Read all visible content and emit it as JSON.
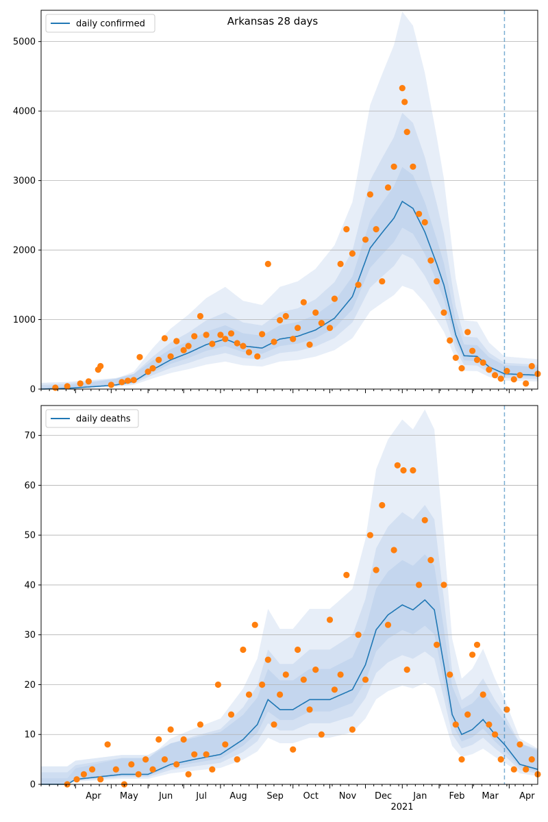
{
  "chart_data": [
    {
      "type": "line",
      "title": "Arkansas 28 days",
      "legend": [
        "daily confirmed"
      ],
      "legend_position": "top-left",
      "ylim": [
        0,
        5450
      ],
      "yticks": [
        0,
        1000,
        2000,
        3000,
        4000,
        5000
      ],
      "grid": "horizontal",
      "forecast_start": "2021-03-28",
      "xlim": [
        "2020-03-03",
        "2021-04-25"
      ],
      "median_knots": [
        [
          "2020-03-03",
          0
        ],
        [
          "2020-03-25",
          10
        ],
        [
          "2020-04-20",
          40
        ],
        [
          "2020-05-05",
          60
        ],
        [
          "2020-05-20",
          110
        ],
        [
          "2020-06-05",
          280
        ],
        [
          "2020-06-20",
          420
        ],
        [
          "2020-07-05",
          520
        ],
        [
          "2020-07-20",
          640
        ],
        [
          "2020-08-05",
          720
        ],
        [
          "2020-08-20",
          620
        ],
        [
          "2020-09-05",
          590
        ],
        [
          "2020-09-20",
          720
        ],
        [
          "2020-10-05",
          760
        ],
        [
          "2020-10-20",
          850
        ],
        [
          "2020-11-05",
          1020
        ],
        [
          "2020-11-20",
          1330
        ],
        [
          "2020-12-05",
          2030
        ],
        [
          "2020-12-15",
          2250
        ],
        [
          "2020-12-25",
          2460
        ],
        [
          "2021-01-01",
          2700
        ],
        [
          "2021-01-10",
          2600
        ],
        [
          "2021-01-20",
          2260
        ],
        [
          "2021-01-30",
          1800
        ],
        [
          "2021-02-05",
          1500
        ],
        [
          "2021-02-15",
          780
        ],
        [
          "2021-02-22",
          480
        ],
        [
          "2021-03-05",
          470
        ],
        [
          "2021-03-15",
          320
        ],
        [
          "2021-03-28",
          220
        ],
        [
          "2021-04-25",
          200
        ]
      ],
      "observed": [
        [
          "2020-03-15",
          20
        ],
        [
          "2020-03-25",
          40
        ],
        [
          "2020-04-05",
          80
        ],
        [
          "2020-04-12",
          110
        ],
        [
          "2020-04-20",
          280
        ],
        [
          "2020-04-22",
          330
        ],
        [
          "2020-05-01",
          60
        ],
        [
          "2020-05-10",
          100
        ],
        [
          "2020-05-15",
          120
        ],
        [
          "2020-05-20",
          130
        ],
        [
          "2020-05-25",
          460
        ],
        [
          "2020-06-01",
          250
        ],
        [
          "2020-06-05",
          300
        ],
        [
          "2020-06-10",
          420
        ],
        [
          "2020-06-15",
          730
        ],
        [
          "2020-06-20",
          470
        ],
        [
          "2020-06-25",
          690
        ],
        [
          "2020-07-01",
          560
        ],
        [
          "2020-07-05",
          620
        ],
        [
          "2020-07-10",
          760
        ],
        [
          "2020-07-15",
          1050
        ],
        [
          "2020-07-20",
          780
        ],
        [
          "2020-07-25",
          650
        ],
        [
          "2020-08-01",
          780
        ],
        [
          "2020-08-05",
          720
        ],
        [
          "2020-08-10",
          800
        ],
        [
          "2020-08-15",
          660
        ],
        [
          "2020-08-20",
          620
        ],
        [
          "2020-08-25",
          530
        ],
        [
          "2020-09-01",
          470
        ],
        [
          "2020-09-05",
          790
        ],
        [
          "2020-09-10",
          1800
        ],
        [
          "2020-09-15",
          680
        ],
        [
          "2020-09-20",
          990
        ],
        [
          "2020-09-25",
          1050
        ],
        [
          "2020-10-01",
          720
        ],
        [
          "2020-10-05",
          880
        ],
        [
          "2020-10-10",
          1250
        ],
        [
          "2020-10-15",
          640
        ],
        [
          "2020-10-20",
          1100
        ],
        [
          "2020-10-25",
          950
        ],
        [
          "2020-11-01",
          880
        ],
        [
          "2020-11-05",
          1300
        ],
        [
          "2020-11-10",
          1800
        ],
        [
          "2020-11-15",
          2300
        ],
        [
          "2020-11-20",
          1950
        ],
        [
          "2020-11-25",
          1500
        ],
        [
          "2020-12-01",
          2150
        ],
        [
          "2020-12-05",
          2800
        ],
        [
          "2020-12-10",
          2300
        ],
        [
          "2020-12-15",
          1550
        ],
        [
          "2020-12-20",
          2900
        ],
        [
          "2020-12-25",
          3200
        ],
        [
          "2021-01-01",
          4330
        ],
        [
          "2021-01-03",
          4130
        ],
        [
          "2021-01-05",
          3700
        ],
        [
          "2021-01-10",
          3200
        ],
        [
          "2021-01-15",
          2520
        ],
        [
          "2021-01-20",
          2400
        ],
        [
          "2021-01-25",
          1850
        ],
        [
          "2021-01-30",
          1550
        ],
        [
          "2021-02-05",
          1100
        ],
        [
          "2021-02-10",
          700
        ],
        [
          "2021-02-15",
          450
        ],
        [
          "2021-02-20",
          300
        ],
        [
          "2021-02-25",
          820
        ],
        [
          "2021-03-01",
          550
        ],
        [
          "2021-03-05",
          420
        ],
        [
          "2021-03-10",
          380
        ],
        [
          "2021-03-15",
          280
        ],
        [
          "2021-03-20",
          200
        ],
        [
          "2021-03-25",
          150
        ],
        [
          "2021-03-30",
          260
        ],
        [
          "2021-04-05",
          140
        ],
        [
          "2021-04-10",
          200
        ],
        [
          "2021-04-15",
          80
        ],
        [
          "2021-04-20",
          330
        ],
        [
          "2021-04-25",
          220
        ]
      ]
    },
    {
      "type": "line",
      "legend": [
        "daily deaths"
      ],
      "legend_position": "top-left",
      "ylim": [
        0,
        76
      ],
      "yticks": [
        0,
        10,
        20,
        30,
        40,
        50,
        60,
        70
      ],
      "grid": "horizontal",
      "forecast_start": "2021-03-28",
      "xlim": [
        "2020-03-03",
        "2021-04-25"
      ],
      "xticks": [
        [
          "2020-04-01",
          "Apr"
        ],
        [
          "2020-05-01",
          "May"
        ],
        [
          "2020-06-01",
          "Jun"
        ],
        [
          "2020-07-01",
          "Jul"
        ],
        [
          "2020-08-01",
          "Aug"
        ],
        [
          "2020-09-01",
          "Sep"
        ],
        [
          "2020-10-01",
          "Oct"
        ],
        [
          "2020-11-01",
          "Nov"
        ],
        [
          "2020-12-01",
          "Dec"
        ],
        [
          "2021-01-01",
          "Jan"
        ],
        [
          "2021-02-01",
          "Feb"
        ],
        [
          "2021-03-01",
          "Mar"
        ],
        [
          "2021-04-01",
          "Apr"
        ]
      ],
      "year_label": "2021",
      "median_knots": [
        [
          "2020-03-03",
          0
        ],
        [
          "2020-03-25",
          0
        ],
        [
          "2020-04-01",
          1
        ],
        [
          "2020-05-10",
          2
        ],
        [
          "2020-06-01",
          2
        ],
        [
          "2020-06-20",
          4
        ],
        [
          "2020-07-10",
          5
        ],
        [
          "2020-08-01",
          6
        ],
        [
          "2020-08-20",
          9
        ],
        [
          "2020-09-01",
          12
        ],
        [
          "2020-09-10",
          17
        ],
        [
          "2020-09-20",
          15
        ],
        [
          "2020-10-01",
          15
        ],
        [
          "2020-10-15",
          17
        ],
        [
          "2020-11-01",
          17
        ],
        [
          "2020-11-20",
          19
        ],
        [
          "2020-12-01",
          24
        ],
        [
          "2020-12-10",
          31
        ],
        [
          "2020-12-20",
          34
        ],
        [
          "2021-01-01",
          36
        ],
        [
          "2021-01-10",
          35
        ],
        [
          "2021-01-20",
          37
        ],
        [
          "2021-01-28",
          35
        ],
        [
          "2021-02-05",
          24
        ],
        [
          "2021-02-12",
          14
        ],
        [
          "2021-02-20",
          10
        ],
        [
          "2021-03-01",
          11
        ],
        [
          "2021-03-10",
          13
        ],
        [
          "2021-03-20",
          10
        ],
        [
          "2021-03-28",
          8
        ],
        [
          "2021-04-10",
          4
        ],
        [
          "2021-04-25",
          3
        ]
      ],
      "observed": [
        [
          "2020-03-25",
          0
        ],
        [
          "2020-04-02",
          1
        ],
        [
          "2020-04-08",
          2
        ],
        [
          "2020-04-15",
          3
        ],
        [
          "2020-04-22",
          1
        ],
        [
          "2020-04-28",
          8
        ],
        [
          "2020-05-05",
          3
        ],
        [
          "2020-05-12",
          0
        ],
        [
          "2020-05-18",
          4
        ],
        [
          "2020-05-24",
          2
        ],
        [
          "2020-05-30",
          5
        ],
        [
          "2020-06-05",
          3
        ],
        [
          "2020-06-10",
          9
        ],
        [
          "2020-06-15",
          5
        ],
        [
          "2020-06-20",
          11
        ],
        [
          "2020-06-25",
          4
        ],
        [
          "2020-07-01",
          9
        ],
        [
          "2020-07-05",
          2
        ],
        [
          "2020-07-10",
          6
        ],
        [
          "2020-07-15",
          12
        ],
        [
          "2020-07-20",
          6
        ],
        [
          "2020-07-25",
          3
        ],
        [
          "2020-07-30",
          20
        ],
        [
          "2020-08-05",
          8
        ],
        [
          "2020-08-10",
          14
        ],
        [
          "2020-08-15",
          5
        ],
        [
          "2020-08-20",
          27
        ],
        [
          "2020-08-25",
          18
        ],
        [
          "2020-08-30",
          32
        ],
        [
          "2020-09-05",
          20
        ],
        [
          "2020-09-10",
          25
        ],
        [
          "2020-09-15",
          12
        ],
        [
          "2020-09-20",
          18
        ],
        [
          "2020-09-25",
          22
        ],
        [
          "2020-10-01",
          7
        ],
        [
          "2020-10-05",
          27
        ],
        [
          "2020-10-10",
          21
        ],
        [
          "2020-10-15",
          15
        ],
        [
          "2020-10-20",
          23
        ],
        [
          "2020-10-25",
          10
        ],
        [
          "2020-11-01",
          33
        ],
        [
          "2020-11-05",
          19
        ],
        [
          "2020-11-10",
          22
        ],
        [
          "2020-11-15",
          42
        ],
        [
          "2020-11-20",
          11
        ],
        [
          "2020-11-25",
          30
        ],
        [
          "2020-12-01",
          21
        ],
        [
          "2020-12-05",
          50
        ],
        [
          "2020-12-10",
          43
        ],
        [
          "2020-12-15",
          56
        ],
        [
          "2020-12-20",
          32
        ],
        [
          "2020-12-25",
          47
        ],
        [
          "2020-12-28",
          64
        ],
        [
          "2021-01-02",
          63
        ],
        [
          "2021-01-05",
          23
        ],
        [
          "2021-01-10",
          63
        ],
        [
          "2021-01-15",
          40
        ],
        [
          "2021-01-20",
          53
        ],
        [
          "2021-01-25",
          45
        ],
        [
          "2021-01-30",
          28
        ],
        [
          "2021-02-05",
          40
        ],
        [
          "2021-02-10",
          22
        ],
        [
          "2021-02-15",
          12
        ],
        [
          "2021-02-20",
          5
        ],
        [
          "2021-02-25",
          14
        ],
        [
          "2021-03-01",
          26
        ],
        [
          "2021-03-05",
          28
        ],
        [
          "2021-03-10",
          18
        ],
        [
          "2021-03-15",
          12
        ],
        [
          "2021-03-20",
          10
        ],
        [
          "2021-03-25",
          5
        ],
        [
          "2021-03-30",
          15
        ],
        [
          "2021-04-05",
          3
        ],
        [
          "2021-04-10",
          8
        ],
        [
          "2021-04-15",
          3
        ],
        [
          "2021-04-20",
          5
        ],
        [
          "2021-04-25",
          2
        ]
      ]
    }
  ],
  "colors": {
    "median": "#1f77b4",
    "observed": "#ff7f0e",
    "band": "#aec7e8",
    "grid": "#b0b0b0"
  }
}
